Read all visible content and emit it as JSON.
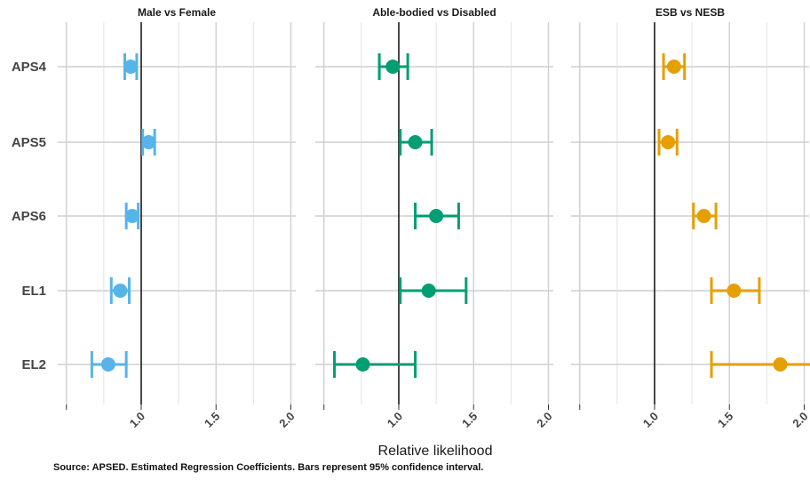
{
  "chart_data": {
    "type": "forest",
    "categories": [
      "APS4",
      "APS5",
      "APS6",
      "EL1",
      "EL2"
    ],
    "xlabel": "Relative likelihood",
    "xlim": [
      0.5,
      2.0
    ],
    "x_ticks": [
      "1.0",
      "1.5",
      "2.0"
    ],
    "reference_line": 1.0,
    "grid": true,
    "caption": "Source: APSED. Estimated Regression Coefficients. Bars represent 95% confidence interval.",
    "panels": [
      {
        "title": "Male vs Female",
        "color": "#56B4E9",
        "points": [
          {
            "category": "APS4",
            "estimate": 0.93,
            "low": 0.89,
            "high": 0.97
          },
          {
            "category": "APS5",
            "estimate": 1.05,
            "low": 1.01,
            "high": 1.09
          },
          {
            "category": "APS6",
            "estimate": 0.94,
            "low": 0.9,
            "high": 0.98
          },
          {
            "category": "EL1",
            "estimate": 0.86,
            "low": 0.8,
            "high": 0.92
          },
          {
            "category": "EL2",
            "estimate": 0.78,
            "low": 0.67,
            "high": 0.9
          }
        ]
      },
      {
        "title": "Able-bodied vs Disabled",
        "color": "#009E73",
        "points": [
          {
            "category": "APS4",
            "estimate": 0.96,
            "low": 0.87,
            "high": 1.06
          },
          {
            "category": "APS5",
            "estimate": 1.11,
            "low": 1.01,
            "high": 1.22
          },
          {
            "category": "APS6",
            "estimate": 1.25,
            "low": 1.11,
            "high": 1.4
          },
          {
            "category": "EL1",
            "estimate": 1.2,
            "low": 1.01,
            "high": 1.45
          },
          {
            "category": "EL2",
            "estimate": 0.76,
            "low": 0.57,
            "high": 1.11
          }
        ]
      },
      {
        "title": "ESB vs NESB",
        "color": "#E69F00",
        "points": [
          {
            "category": "APS4",
            "estimate": 1.13,
            "low": 1.06,
            "high": 1.2
          },
          {
            "category": "APS5",
            "estimate": 1.09,
            "low": 1.03,
            "high": 1.15
          },
          {
            "category": "APS6",
            "estimate": 1.33,
            "low": 1.26,
            "high": 1.41
          },
          {
            "category": "EL1",
            "estimate": 1.53,
            "low": 1.38,
            "high": 1.7
          },
          {
            "category": "EL2",
            "estimate": 1.84,
            "low": 1.38,
            "high": 2.05
          }
        ]
      }
    ]
  }
}
